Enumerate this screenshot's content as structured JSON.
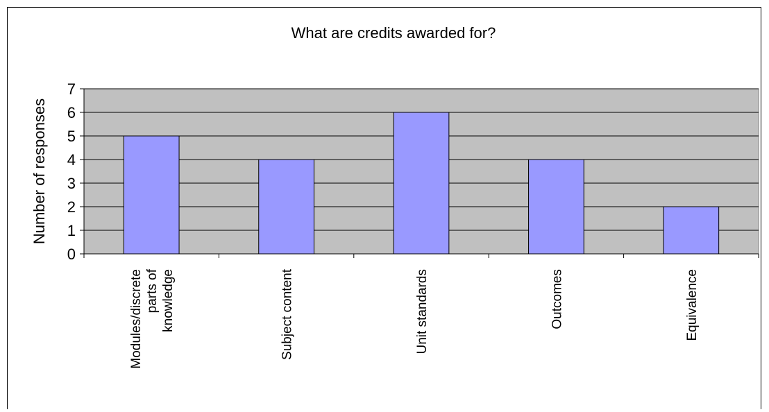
{
  "chart_data": {
    "type": "bar",
    "title": "What are credits awarded for?",
    "xlabel": "",
    "ylabel": "Number of responses",
    "categories": [
      "Modules/discrete parts of knowledge",
      "Subject content",
      "Unit standards",
      "Outcomes",
      "Equivalence"
    ],
    "category_lines": [
      [
        "Modules/discrete",
        "parts of",
        "knowledge"
      ],
      [
        "Subject content"
      ],
      [
        "Unit standards"
      ],
      [
        "Outcomes"
      ],
      [
        "Equivalence"
      ]
    ],
    "values": [
      5,
      4,
      6,
      4,
      2
    ],
    "ylim": [
      0,
      7
    ],
    "yticks": [
      "0",
      "1",
      "2",
      "3",
      "4",
      "5",
      "6",
      "7"
    ],
    "grid": true,
    "legend": "none",
    "colors": {
      "bar_fill": "#9999ff",
      "plot_background": "#c0c0c0",
      "gridline": "#000000",
      "axis": "#000000"
    }
  }
}
